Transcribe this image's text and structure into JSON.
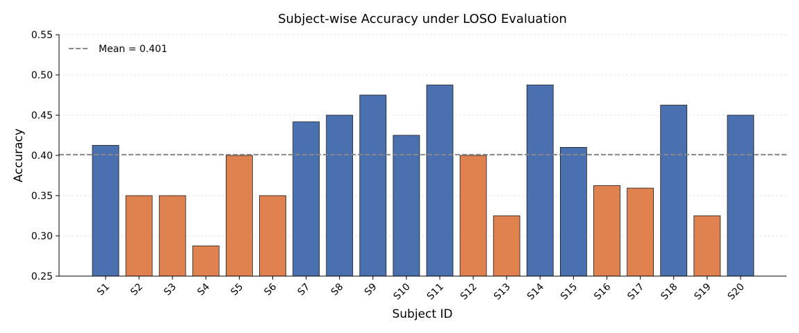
{
  "chart_data": {
    "type": "bar",
    "title": "Subject-wise Accuracy under LOSO Evaluation",
    "xlabel": "Subject ID",
    "ylabel": "Accuracy",
    "ylim": [
      0.25,
      0.55
    ],
    "yticks": [
      "0.25",
      "0.30",
      "0.35",
      "0.40",
      "0.45",
      "0.50",
      "0.55"
    ],
    "categories": [
      "S1",
      "S2",
      "S3",
      "S4",
      "S5",
      "S6",
      "S7",
      "S8",
      "S9",
      "S10",
      "S11",
      "S12",
      "S13",
      "S14",
      "S15",
      "S16",
      "S17",
      "S18",
      "S19",
      "S20"
    ],
    "values": [
      0.4125,
      0.35,
      0.35,
      0.2875,
      0.4,
      0.35,
      0.4417,
      0.45,
      0.475,
      0.425,
      0.4875,
      0.4,
      0.325,
      0.4875,
      0.41,
      0.3625,
      0.3594,
      0.4625,
      0.325,
      0.45
    ],
    "mean": 0.401,
    "legend": {
      "label": "Mean = 0.401",
      "position": "top-left"
    },
    "grid": "horizontal-dotted",
    "colors": {
      "above_mean": "#4a70b0",
      "below_mean": "#e0824f",
      "mean_line": "#888888",
      "bar_edge": "#1a1a1a",
      "grid": "#dddddd"
    }
  }
}
